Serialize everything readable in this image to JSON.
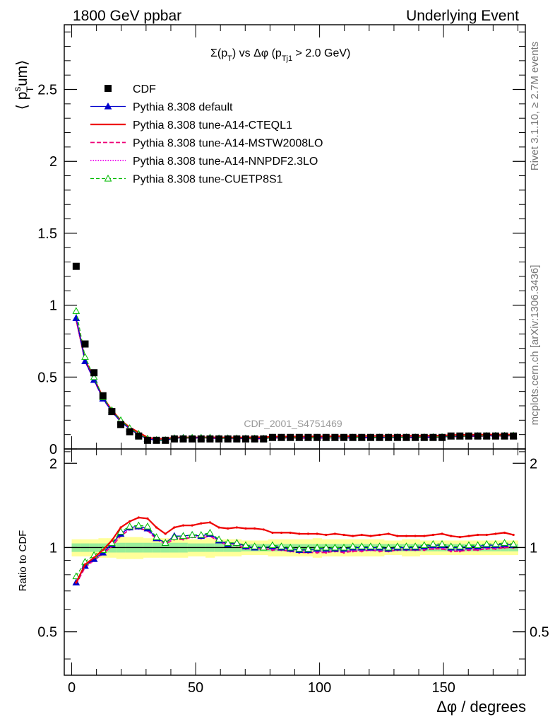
{
  "header": {
    "left": "1800 GeV ppbar",
    "right": "Underlying Event"
  },
  "side_texts": {
    "rivet": "Rivet 3.1.10, ≥ 2.7M events",
    "mcplots": "mcplots.cern.ch [arXiv:1306.3436]"
  },
  "watermark": "CDF_2001_S4751469",
  "plot_title": {
    "sigma": "Σ(p",
    "sub_t": "T",
    "mid": ") vs Δφ (p",
    "sub_tj1": "Tj1",
    "tail": " > 2.0 GeV)"
  },
  "colors": {
    "cdf": "#000000",
    "default": "#0000cc",
    "cteql1": "#ee0000",
    "mstw": "#ee0077",
    "nnpdf": "#ee00ee",
    "cuetp8s1": "#00bb00",
    "band_outer": "#ffff99",
    "band_inner": "#99ee99"
  },
  "chart_data": [
    {
      "type": "scatter",
      "panel": "main",
      "ylabel_main": "⟨ p",
      "ylabel_sup": "s",
      "ylabel_sub": "T",
      "ylabel_tail": "um⟩",
      "xlim": [
        -3,
        183
      ],
      "ylim": [
        0,
        2.95
      ],
      "yticks": [
        0,
        0.5,
        1,
        1.5,
        2,
        2.5
      ],
      "ytick_labels": [
        "0",
        "0.5",
        "1",
        "1.5",
        "2",
        "2.5"
      ],
      "legend": {
        "placement": "top-left",
        "entries": [
          "CDF",
          "Pythia 8.308 default",
          "Pythia 8.308 tune-A14-CTEQL1",
          "Pythia 8.308 tune-A14-MSTW2008LO",
          "Pythia 8.308 tune-A14-NNPDF2.3LO",
          "Pythia 8.308 tune-CUETP8S1"
        ]
      },
      "x": [
        1.8,
        5.4,
        9.0,
        12.6,
        16.2,
        19.8,
        23.4,
        27.0,
        30.6,
        34.2,
        37.8,
        41.4,
        45.0,
        48.6,
        52.2,
        55.8,
        59.4,
        63.0,
        66.6,
        70.2,
        73.8,
        77.4,
        81.0,
        84.6,
        88.2,
        91.8,
        95.4,
        99.0,
        102.6,
        106.2,
        109.8,
        113.4,
        117.0,
        120.6,
        124.2,
        127.8,
        131.4,
        135.0,
        138.6,
        142.2,
        145.8,
        149.4,
        153.0,
        156.6,
        160.2,
        163.8,
        167.4,
        171.0,
        174.6,
        178.2
      ],
      "series": [
        {
          "name": "CDF",
          "values": [
            1.27,
            0.73,
            0.53,
            0.37,
            0.26,
            0.17,
            0.12,
            0.09,
            0.06,
            0.06,
            0.06,
            0.07,
            0.07,
            0.07,
            0.07,
            0.07,
            0.07,
            0.07,
            0.07,
            0.07,
            0.07,
            0.07,
            0.08,
            0.08,
            0.08,
            0.08,
            0.08,
            0.08,
            0.08,
            0.08,
            0.08,
            0.08,
            0.08,
            0.08,
            0.08,
            0.08,
            0.08,
            0.08,
            0.08,
            0.08,
            0.08,
            0.08,
            0.09,
            0.09,
            0.09,
            0.09,
            0.09,
            0.09,
            0.09,
            0.09
          ]
        },
        {
          "name": "Pythia 8.308 default",
          "values": [
            0.91,
            0.61,
            0.48,
            0.35,
            0.26,
            0.19,
            0.14,
            0.1,
            0.07,
            0.06,
            0.06,
            0.075,
            0.078,
            0.077,
            0.078,
            0.078,
            0.073,
            0.074,
            0.073,
            0.073,
            0.072,
            0.072,
            0.078,
            0.078,
            0.078,
            0.078,
            0.077,
            0.078,
            0.077,
            0.078,
            0.078,
            0.079,
            0.079,
            0.08,
            0.08,
            0.08,
            0.081,
            0.081,
            0.081,
            0.082,
            0.083,
            0.083,
            0.087,
            0.088,
            0.089,
            0.09,
            0.091,
            0.092,
            0.092,
            0.092
          ]
        },
        {
          "name": "Pythia 8.308 tune-A14-CTEQL1",
          "values": [
            0.9,
            0.62,
            0.49,
            0.36,
            0.27,
            0.2,
            0.15,
            0.115,
            0.08,
            0.07,
            0.07,
            0.08,
            0.08,
            0.08,
            0.08,
            0.081,
            0.08,
            0.08,
            0.08,
            0.08,
            0.081,
            0.081,
            0.086,
            0.086,
            0.086,
            0.087,
            0.087,
            0.088,
            0.088,
            0.089,
            0.089,
            0.089,
            0.09,
            0.09,
            0.09,
            0.09,
            0.091,
            0.091,
            0.091,
            0.092,
            0.092,
            0.093,
            0.097,
            0.098,
            0.098,
            0.099,
            0.1,
            0.1,
            0.1,
            0.1
          ]
        },
        {
          "name": "Pythia 8.308 tune-A14-MSTW2008LO",
          "values": [
            0.9,
            0.61,
            0.48,
            0.35,
            0.26,
            0.19,
            0.14,
            0.1,
            0.07,
            0.063,
            0.062,
            0.073,
            0.075,
            0.076,
            0.076,
            0.076,
            0.072,
            0.072,
            0.072,
            0.071,
            0.071,
            0.071,
            0.076,
            0.076,
            0.076,
            0.075,
            0.075,
            0.076,
            0.076,
            0.076,
            0.077,
            0.077,
            0.077,
            0.078,
            0.078,
            0.079,
            0.079,
            0.079,
            0.08,
            0.08,
            0.08,
            0.081,
            0.085,
            0.086,
            0.087,
            0.088,
            0.089,
            0.09,
            0.09,
            0.09
          ]
        },
        {
          "name": "Pythia 8.308 tune-A14-NNPDF2.3LO",
          "values": [
            0.9,
            0.61,
            0.48,
            0.35,
            0.26,
            0.19,
            0.14,
            0.1,
            0.07,
            0.063,
            0.062,
            0.074,
            0.076,
            0.076,
            0.077,
            0.077,
            0.072,
            0.073,
            0.072,
            0.072,
            0.071,
            0.071,
            0.077,
            0.077,
            0.077,
            0.076,
            0.076,
            0.077,
            0.077,
            0.077,
            0.077,
            0.078,
            0.078,
            0.079,
            0.079,
            0.079,
            0.08,
            0.08,
            0.08,
            0.081,
            0.081,
            0.082,
            0.086,
            0.087,
            0.088,
            0.089,
            0.09,
            0.09,
            0.091,
            0.091
          ]
        },
        {
          "name": "Pythia 8.308 tune-CUETP8S1",
          "values": [
            0.96,
            0.64,
            0.5,
            0.36,
            0.27,
            0.2,
            0.145,
            0.105,
            0.072,
            0.063,
            0.062,
            0.075,
            0.077,
            0.078,
            0.078,
            0.079,
            0.074,
            0.074,
            0.074,
            0.073,
            0.073,
            0.072,
            0.078,
            0.078,
            0.078,
            0.078,
            0.078,
            0.078,
            0.078,
            0.078,
            0.079,
            0.079,
            0.079,
            0.08,
            0.08,
            0.081,
            0.081,
            0.081,
            0.081,
            0.082,
            0.083,
            0.083,
            0.087,
            0.088,
            0.089,
            0.09,
            0.091,
            0.092,
            0.092,
            0.093
          ]
        }
      ]
    },
    {
      "type": "line",
      "panel": "ratio",
      "ylabel": "Ratio to CDF",
      "xlabel_phi": "Δφ",
      "xlabel_tail": " / degrees",
      "xlim": [
        -3,
        183
      ],
      "ylim": [
        0.35,
        2.25
      ],
      "xticks": [
        0,
        50,
        100,
        150
      ],
      "xtick_labels": [
        "0",
        "50",
        "100",
        "150"
      ],
      "yticks": [
        0.5,
        1,
        2
      ],
      "ytick_labels": [
        "0.5",
        "1",
        "2"
      ],
      "reference_line": 1,
      "band_outer_halfwidth": [
        0.07,
        0.07,
        0.07,
        0.08,
        0.08,
        0.09,
        0.09,
        0.09,
        0.08,
        0.08,
        0.08,
        0.08,
        0.08,
        0.07,
        0.07,
        0.08,
        0.07,
        0.07,
        0.07,
        0.06,
        0.06,
        0.06,
        0.07,
        0.07,
        0.07,
        0.07,
        0.07,
        0.08,
        0.07,
        0.07,
        0.07,
        0.07,
        0.07,
        0.07,
        0.07,
        0.06,
        0.06,
        0.07,
        0.07,
        0.06,
        0.06,
        0.06,
        0.06,
        0.06,
        0.06,
        0.06,
        0.06,
        0.06,
        0.06,
        0.06
      ],
      "band_inner_halfwidth": [
        0.035,
        0.035,
        0.035,
        0.035,
        0.04,
        0.04,
        0.04,
        0.04,
        0.04,
        0.04,
        0.04,
        0.04,
        0.04,
        0.035,
        0.035,
        0.035,
        0.035,
        0.035,
        0.035,
        0.03,
        0.03,
        0.03,
        0.03,
        0.03,
        0.03,
        0.03,
        0.03,
        0.03,
        0.03,
        0.03,
        0.03,
        0.03,
        0.03,
        0.03,
        0.03,
        0.03,
        0.03,
        0.03,
        0.03,
        0.03,
        0.03,
        0.03,
        0.03,
        0.03,
        0.03,
        0.03,
        0.03,
        0.03,
        0.03,
        0.03
      ],
      "x": [
        1.8,
        5.4,
        9.0,
        12.6,
        16.2,
        19.8,
        23.4,
        27.0,
        30.6,
        34.2,
        37.8,
        41.4,
        45.0,
        48.6,
        52.2,
        55.8,
        59.4,
        63.0,
        66.6,
        70.2,
        73.8,
        77.4,
        81.0,
        84.6,
        88.2,
        91.8,
        95.4,
        99.0,
        102.6,
        106.2,
        109.8,
        113.4,
        117.0,
        120.6,
        124.2,
        127.8,
        131.4,
        135.0,
        138.6,
        142.2,
        145.8,
        149.4,
        153.0,
        156.6,
        160.2,
        163.8,
        167.4,
        171.0,
        174.6,
        178.2
      ],
      "series": [
        {
          "name": "Pythia 8.308 default",
          "values": [
            0.75,
            0.86,
            0.91,
            0.96,
            1.03,
            1.12,
            1.18,
            1.19,
            1.17,
            1.08,
            1.04,
            1.1,
            1.1,
            1.11,
            1.1,
            1.12,
            1.06,
            1.03,
            1.04,
            1.01,
            1.0,
            1.0,
            1.01,
            1.0,
            0.99,
            0.98,
            0.98,
            0.99,
            0.99,
            0.99,
            0.99,
            1.0,
            1.0,
            1.0,
            1.0,
            0.99,
            1.0,
            1.0,
            1.0,
            1.01,
            1.02,
            1.02,
            1.0,
            1.0,
            1.01,
            1.01,
            1.02,
            1.02,
            1.03,
            1.02
          ]
        },
        {
          "name": "Pythia 8.308 tune-A14-CTEQL1",
          "values": [
            0.75,
            0.87,
            0.92,
            0.98,
            1.06,
            1.18,
            1.24,
            1.28,
            1.27,
            1.18,
            1.12,
            1.18,
            1.2,
            1.2,
            1.22,
            1.23,
            1.18,
            1.17,
            1.18,
            1.17,
            1.17,
            1.16,
            1.13,
            1.13,
            1.13,
            1.12,
            1.12,
            1.12,
            1.11,
            1.12,
            1.11,
            1.1,
            1.11,
            1.1,
            1.11,
            1.12,
            1.1,
            1.1,
            1.1,
            1.1,
            1.11,
            1.12,
            1.1,
            1.09,
            1.1,
            1.11,
            1.11,
            1.12,
            1.13,
            1.11
          ]
        },
        {
          "name": "Pythia 8.308 tune-A14-MSTW2008LO",
          "values": [
            0.74,
            0.85,
            0.9,
            0.95,
            1.01,
            1.1,
            1.16,
            1.17,
            1.15,
            1.07,
            1.03,
            1.07,
            1.07,
            1.09,
            1.08,
            1.1,
            1.05,
            1.02,
            1.02,
            0.99,
            0.99,
            0.99,
            0.98,
            0.98,
            0.97,
            0.96,
            0.96,
            0.96,
            0.96,
            0.97,
            0.96,
            0.97,
            0.97,
            0.98,
            0.97,
            0.97,
            0.98,
            0.98,
            0.98,
            0.98,
            0.99,
            0.99,
            0.97,
            0.97,
            0.98,
            0.98,
            0.99,
            0.99,
            1.0,
            1.0
          ]
        },
        {
          "name": "Pythia 8.308 tune-A14-NNPDF2.3LO",
          "values": [
            0.74,
            0.86,
            0.9,
            0.95,
            1.02,
            1.11,
            1.17,
            1.18,
            1.16,
            1.07,
            1.03,
            1.08,
            1.08,
            1.1,
            1.09,
            1.11,
            1.05,
            1.02,
            1.03,
            1.0,
            0.99,
            0.99,
            0.99,
            0.99,
            0.98,
            0.97,
            0.97,
            0.97,
            0.97,
            0.98,
            0.97,
            0.98,
            0.98,
            0.98,
            0.98,
            0.98,
            0.99,
            0.99,
            0.99,
            0.99,
            1.0,
            1.0,
            0.98,
            0.98,
            0.99,
            0.99,
            1.0,
            1.0,
            1.01,
            1.01
          ]
        },
        {
          "name": "Pythia 8.308 tune-CUETP8S1",
          "values": [
            0.79,
            0.89,
            0.94,
            0.98,
            1.04,
            1.14,
            1.19,
            1.2,
            1.19,
            1.09,
            1.04,
            1.09,
            1.1,
            1.11,
            1.11,
            1.13,
            1.07,
            1.04,
            1.04,
            1.02,
            1.01,
            1.0,
            1.02,
            1.01,
            1.0,
            0.99,
            0.99,
            1.0,
            1.0,
            1.0,
            1.0,
            1.01,
            1.01,
            1.01,
            1.01,
            1.0,
            1.01,
            1.01,
            1.01,
            1.02,
            1.03,
            1.03,
            1.01,
            1.01,
            1.02,
            1.02,
            1.03,
            1.03,
            1.04,
            1.03
          ]
        }
      ]
    }
  ]
}
